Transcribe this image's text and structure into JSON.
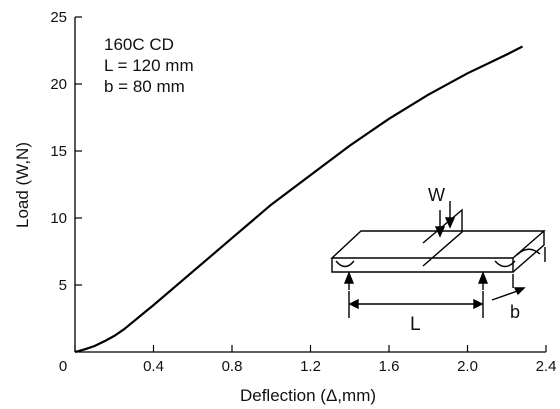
{
  "chart_data": {
    "type": "line",
    "xlabel": "Deflection (Δ,mm)",
    "ylabel": "Load (W,N)",
    "xlim": [
      0,
      2.4
    ],
    "ylim": [
      0,
      25
    ],
    "x_ticks": [
      "0",
      "0.4",
      "0.8",
      "1.2",
      "1.6",
      "2.0",
      "2.4"
    ],
    "y_ticks": [
      "0",
      "5",
      "10",
      "15",
      "20",
      "25"
    ],
    "grid": false,
    "annotations": [
      "160C CD",
      "L = 120 mm",
      "b = 80 mm"
    ],
    "series": [
      {
        "x": [
          0.0,
          0.05,
          0.1,
          0.15,
          0.2,
          0.25,
          0.3,
          0.35,
          0.4,
          0.6,
          0.8,
          1.0,
          1.2,
          1.4,
          1.6,
          1.8,
          2.0,
          2.2,
          2.28
        ],
        "y": [
          0.0,
          0.2,
          0.45,
          0.8,
          1.2,
          1.7,
          2.3,
          2.9,
          3.5,
          6.0,
          8.5,
          11.0,
          13.2,
          15.4,
          17.4,
          19.2,
          20.8,
          22.2,
          22.8
        ]
      }
    ]
  },
  "inset": {
    "load_label": "W",
    "span_label": "L",
    "width_label": "b"
  }
}
